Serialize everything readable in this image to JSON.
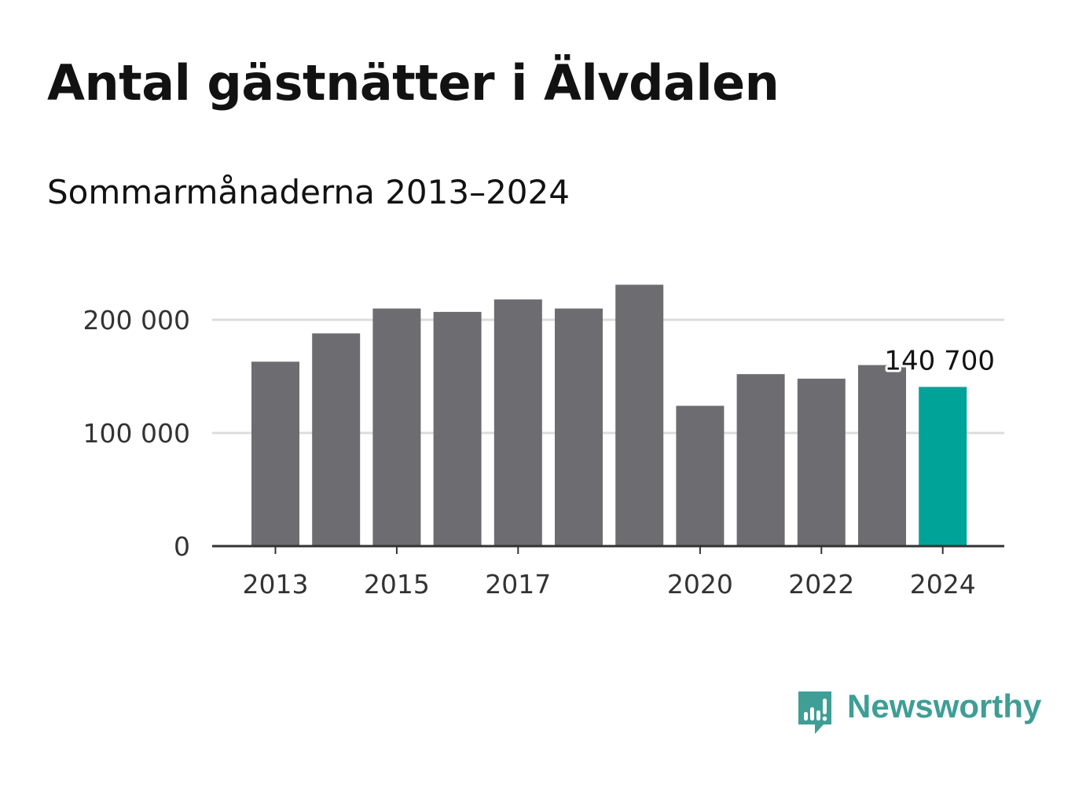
{
  "title": "Antal gästnätter i Älvdalen",
  "subtitle": "Sommarmånaderna 2013–2024",
  "brand": {
    "name": "Newsworthy",
    "icon": "newsworthy-bar-chart-logo-icon",
    "color": "#3f9e95"
  },
  "colors": {
    "bar": "#6d6c71",
    "highlight": "#00a398",
    "grid": "#dcdcdc",
    "axis": "#333333"
  },
  "chart_data": {
    "type": "bar",
    "categories": [
      "2013",
      "2014",
      "2015",
      "2016",
      "2017",
      "2018",
      "2019",
      "2020",
      "2021",
      "2022",
      "2023",
      "2024"
    ],
    "values": [
      163000,
      188000,
      210000,
      207000,
      218000,
      210000,
      231000,
      124000,
      152000,
      148000,
      160000,
      140700
    ],
    "x_tick_labels": [
      "2013",
      "2015",
      "2017",
      "2020",
      "2022",
      "2024"
    ],
    "y_ticks": [
      0,
      100000,
      200000
    ],
    "y_tick_labels": [
      "0",
      "100 000",
      "200 000"
    ],
    "highlight_index": 11,
    "highlight_label": "140 700",
    "ylim": [
      0,
      240000
    ],
    "grid": true,
    "xlabel": "",
    "ylabel": ""
  }
}
